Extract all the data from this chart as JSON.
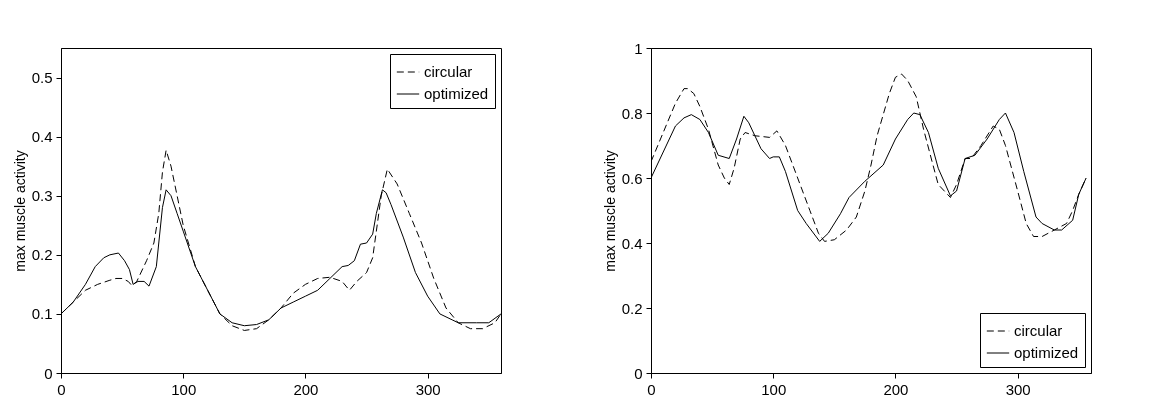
{
  "chart_data": [
    {
      "type": "line",
      "ylabel": "max muscle activity",
      "xlim": [
        0,
        360
      ],
      "xticks": [
        0,
        100,
        200,
        300
      ],
      "ylim": [
        0,
        0.55
      ],
      "yticks": [
        0,
        0.1,
        0.2,
        0.3,
        0.4,
        0.5
      ],
      "legend": "top right",
      "grid": false,
      "series": [
        {
          "name": "circular",
          "color": "#000000",
          "line_style": "dashed",
          "x": [
            0,
            10,
            20,
            30,
            40,
            45,
            50,
            55,
            58,
            62,
            70,
            76,
            80,
            83,
            86,
            90,
            95,
            100,
            110,
            120,
            130,
            140,
            150,
            160,
            170,
            180,
            190,
            200,
            210,
            220,
            230,
            236,
            242,
            250,
            255,
            262,
            267,
            275,
            285,
            295,
            305,
            315,
            325,
            335,
            345,
            355,
            360
          ],
          "values": [
            0.1,
            0.12,
            0.14,
            0.15,
            0.157,
            0.16,
            0.16,
            0.155,
            0.148,
            0.155,
            0.19,
            0.22,
            0.27,
            0.34,
            0.377,
            0.35,
            0.3,
            0.25,
            0.18,
            0.14,
            0.1,
            0.08,
            0.072,
            0.075,
            0.09,
            0.11,
            0.135,
            0.15,
            0.16,
            0.162,
            0.155,
            0.14,
            0.155,
            0.17,
            0.195,
            0.3,
            0.345,
            0.32,
            0.27,
            0.22,
            0.16,
            0.11,
            0.085,
            0.075,
            0.075,
            0.085,
            0.1
          ]
        },
        {
          "name": "optimized",
          "color": "#000000",
          "line_style": "solid",
          "x": [
            0,
            10,
            20,
            28,
            35,
            40,
            47,
            52,
            56,
            59,
            63,
            68,
            72,
            78,
            80,
            83,
            86,
            90,
            95,
            100,
            110,
            120,
            130,
            140,
            150,
            160,
            170,
            180,
            190,
            200,
            210,
            220,
            230,
            235,
            240,
            245,
            250,
            255,
            258,
            263,
            266,
            270,
            280,
            290,
            300,
            310,
            320,
            325,
            340,
            350,
            360
          ],
          "values": [
            0.1,
            0.12,
            0.15,
            0.18,
            0.195,
            0.2,
            0.203,
            0.19,
            0.175,
            0.15,
            0.155,
            0.155,
            0.147,
            0.18,
            0.22,
            0.28,
            0.31,
            0.3,
            0.27,
            0.24,
            0.18,
            0.14,
            0.1,
            0.085,
            0.08,
            0.082,
            0.09,
            0.11,
            0.12,
            0.13,
            0.14,
            0.16,
            0.18,
            0.182,
            0.19,
            0.218,
            0.22,
            0.235,
            0.27,
            0.31,
            0.305,
            0.285,
            0.23,
            0.17,
            0.13,
            0.1,
            0.09,
            0.085,
            0.085,
            0.085,
            0.1
          ]
        }
      ]
    },
    {
      "type": "line",
      "ylabel": "max muscle activity",
      "xlim": [
        0,
        360
      ],
      "xticks": [
        0,
        100,
        200,
        300
      ],
      "ylim": [
        0,
        1
      ],
      "yticks": [
        0,
        0.2,
        0.4,
        0.6,
        0.8,
        1
      ],
      "legend": "bottom right",
      "grid": false,
      "series": [
        {
          "name": "circular",
          "color": "#000000",
          "line_style": "dashed",
          "x": [
            0,
            10,
            20,
            27,
            30,
            35,
            40,
            47,
            55,
            60,
            64,
            68,
            73,
            77,
            85,
            97,
            103,
            110,
            120,
            130,
            137,
            142,
            150,
            160,
            168,
            175,
            180,
            185,
            195,
            200,
            205,
            210,
            217,
            223,
            230,
            235,
            245,
            250,
            257,
            262,
            270,
            280,
            285,
            290,
            300,
            307,
            313,
            320,
            330,
            340,
            345,
            350,
            356
          ],
          "values": [
            0.65,
            0.74,
            0.83,
            0.875,
            0.875,
            0.86,
            0.82,
            0.75,
            0.64,
            0.6,
            0.58,
            0.63,
            0.72,
            0.74,
            0.73,
            0.725,
            0.745,
            0.7,
            0.6,
            0.5,
            0.43,
            0.405,
            0.41,
            0.44,
            0.48,
            0.56,
            0.64,
            0.73,
            0.86,
            0.91,
            0.92,
            0.9,
            0.85,
            0.75,
            0.65,
            0.58,
            0.54,
            0.58,
            0.66,
            0.66,
            0.7,
            0.76,
            0.75,
            0.7,
            0.56,
            0.46,
            0.42,
            0.42,
            0.44,
            0.46,
            0.5,
            0.55,
            0.6
          ]
        },
        {
          "name": "optimized",
          "color": "#000000",
          "line_style": "solid",
          "x": [
            0,
            5,
            10,
            20,
            27,
            33,
            40,
            47,
            55,
            64,
            70,
            76,
            80,
            85,
            90,
            97,
            100,
            105,
            110,
            115,
            120,
            127,
            138,
            145,
            155,
            162,
            175,
            190,
            200,
            210,
            215,
            220,
            227,
            235,
            245,
            250,
            257,
            265,
            275,
            285,
            290,
            297,
            305,
            315,
            320,
            330,
            336,
            345,
            350,
            356
          ],
          "values": [
            0.6,
            0.64,
            0.68,
            0.76,
            0.785,
            0.795,
            0.78,
            0.74,
            0.67,
            0.66,
            0.72,
            0.79,
            0.77,
            0.73,
            0.69,
            0.66,
            0.665,
            0.665,
            0.62,
            0.56,
            0.5,
            0.46,
            0.405,
            0.43,
            0.49,
            0.54,
            0.59,
            0.64,
            0.72,
            0.78,
            0.8,
            0.795,
            0.74,
            0.63,
            0.545,
            0.56,
            0.66,
            0.67,
            0.72,
            0.78,
            0.8,
            0.74,
            0.62,
            0.48,
            0.46,
            0.44,
            0.44,
            0.47,
            0.55,
            0.6
          ]
        }
      ]
    }
  ]
}
